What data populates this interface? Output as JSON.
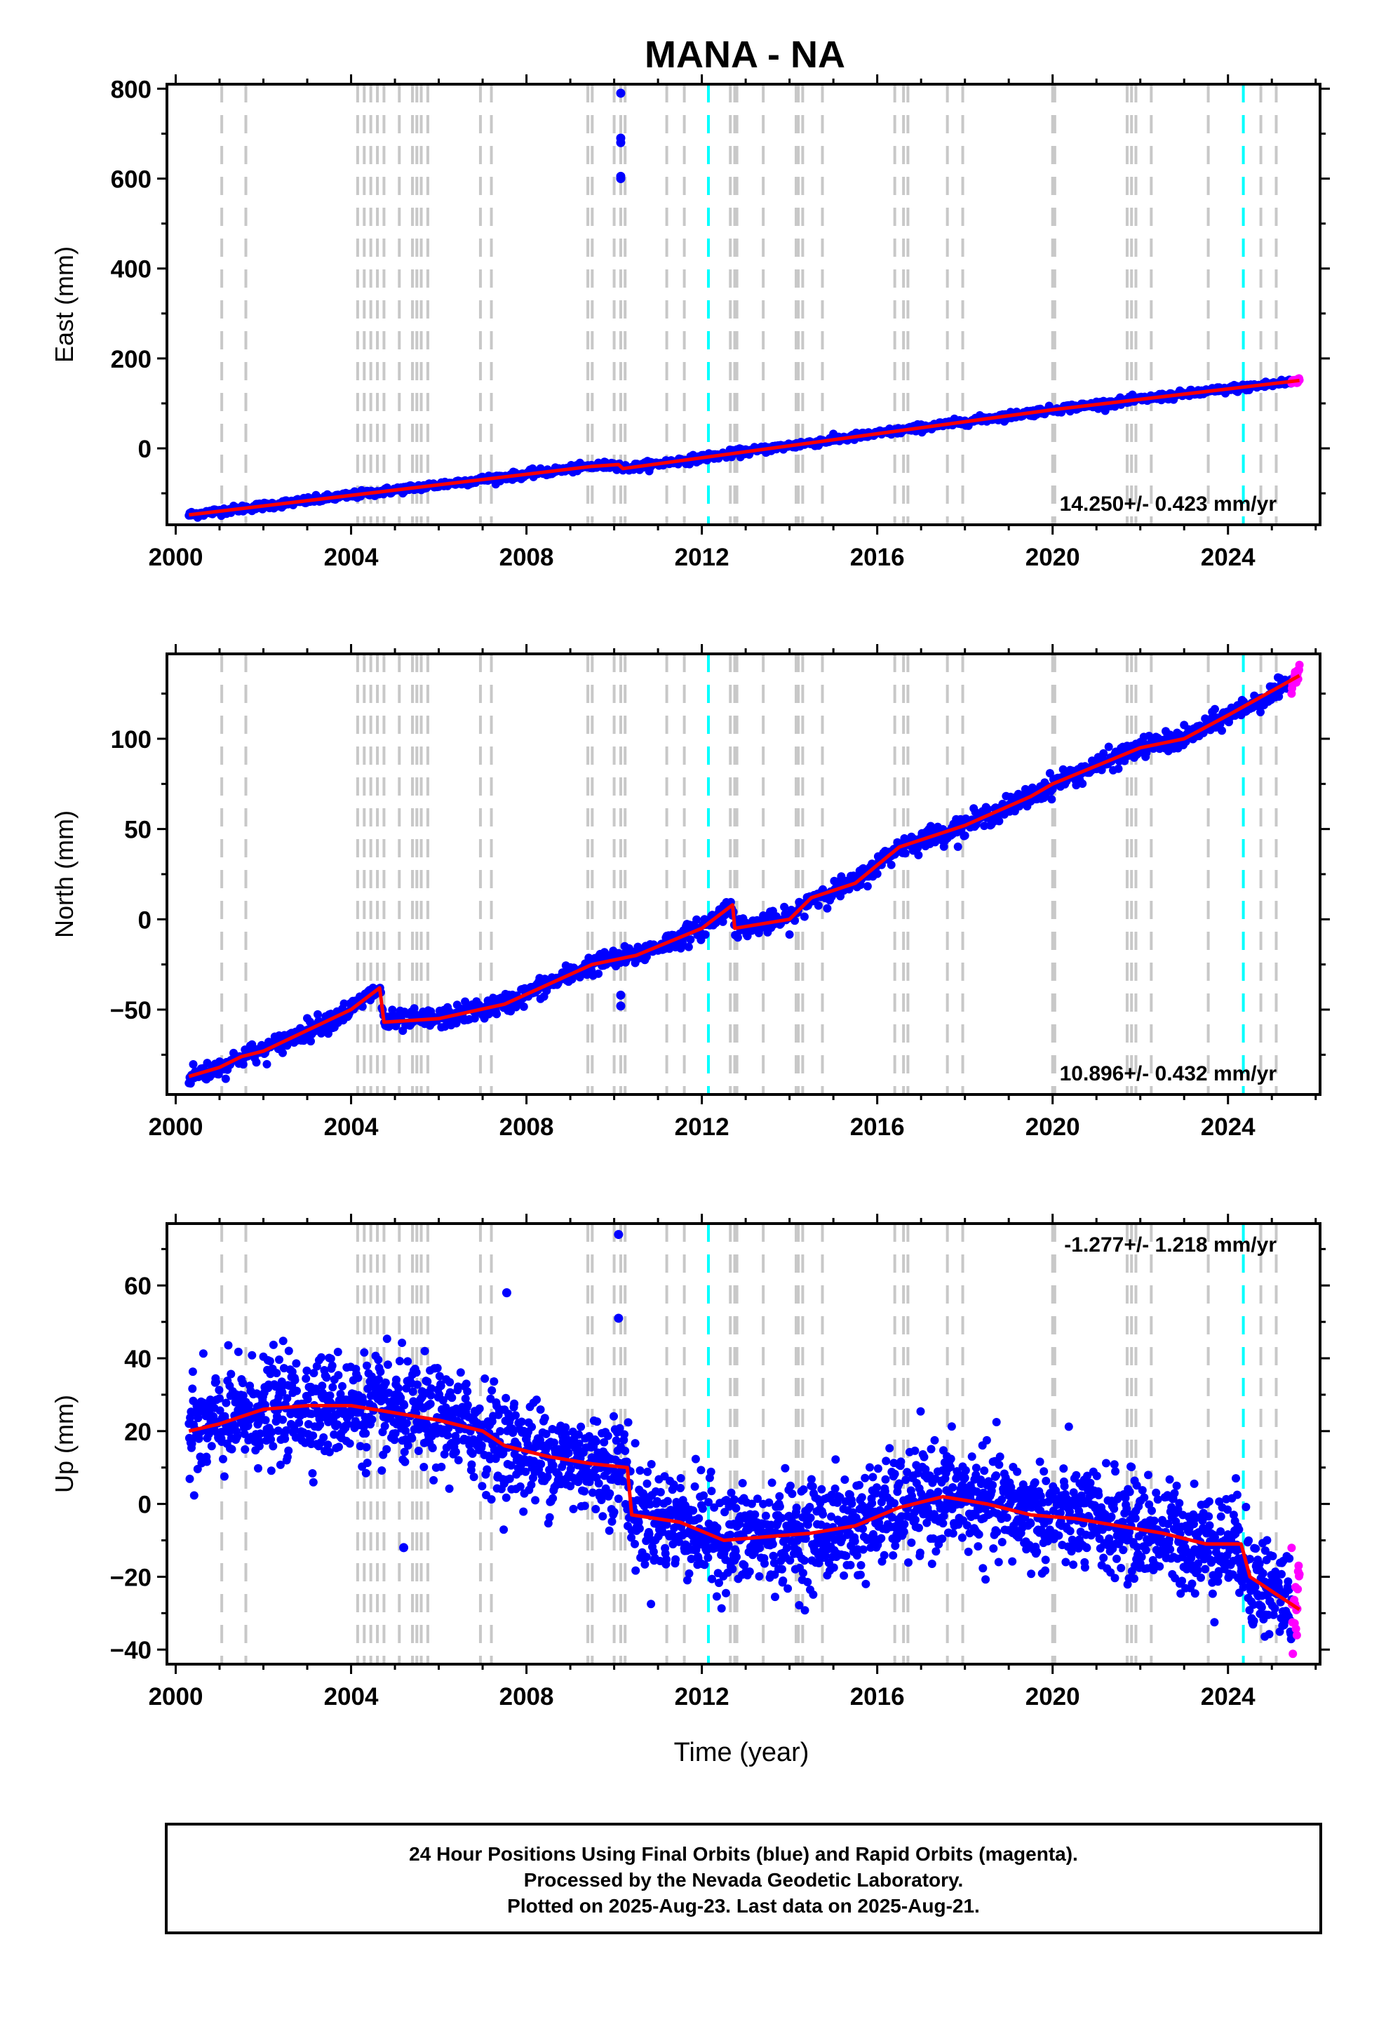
{
  "figure": {
    "title": "MANA - NA",
    "xlabel": "Time (year)",
    "footer": [
      "24 Hour Positions Using Final Orbits (blue) and Rapid Orbits (magenta).",
      "Processed by the Nevada Geodetic Laboratory.",
      "Plotted on 2025-Aug-23. Last data on 2025-Aug-21."
    ]
  },
  "colors": {
    "final_orbits": "#0000ff",
    "rapid_orbits": "#ff00ff",
    "model": "#ff0000",
    "equipment_change": "#c8c8c8",
    "earthquake": "#00ffff",
    "frame": "#000000"
  },
  "chart_data": [
    {
      "type": "scatter",
      "ylabel": "East (mm)",
      "xlim": [
        1999.8,
        2026.1
      ],
      "ylim": [
        -170,
        810
      ],
      "xticks": [
        2000,
        2004,
        2008,
        2012,
        2016,
        2020,
        2024
      ],
      "yticks": [
        0,
        200,
        400,
        600,
        800
      ],
      "rate_text": "14.250+/- 0.423 mm/yr",
      "rate_position": "bottom-right",
      "series": [
        {
          "role": "final",
          "start": 2000.3,
          "end": 2025.45,
          "step": 0.02,
          "anchors": [
            [
              2000.3,
              -148
            ],
            [
              2009.5,
              -40
            ],
            [
              2010.1,
              -36
            ],
            [
              2010.2,
              -45
            ],
            [
              2020.0,
              86
            ],
            [
              2025.45,
              148
            ]
          ],
          "noise": 4
        },
        {
          "role": "rapid",
          "start": 2025.45,
          "end": 2025.63,
          "step": 0.01,
          "anchors": [
            [
              2025.45,
              148
            ],
            [
              2025.63,
              152
            ]
          ],
          "noise": 3
        }
      ],
      "outliers": [
        [
          2010.15,
          790
        ],
        [
          2010.15,
          690
        ],
        [
          2010.15,
          680
        ],
        [
          2010.15,
          605
        ],
        [
          2010.15,
          600
        ]
      ],
      "model": [
        [
          2000.3,
          -148
        ],
        [
          2009.5,
          -40
        ],
        [
          2010.1,
          -36
        ],
        [
          2010.2,
          -45
        ],
        [
          2020.0,
          86
        ],
        [
          2025.63,
          151
        ]
      ]
    },
    {
      "type": "scatter",
      "ylabel": "North (mm)",
      "xlim": [
        1999.8,
        2026.1
      ],
      "ylim": [
        -97,
        147
      ],
      "xticks": [
        2000,
        2004,
        2008,
        2012,
        2016,
        2020,
        2024
      ],
      "yticks": [
        -50,
        0,
        50,
        100
      ],
      "rate_text": "10.896+/- 0.432 mm/yr",
      "rate_position": "bottom-right",
      "series": [
        {
          "role": "final",
          "start": 2000.3,
          "end": 2025.45,
          "step": 0.02,
          "anchors": [
            [
              2000.3,
              -87
            ],
            [
              2001.0,
              -82
            ],
            [
              2001.5,
              -76
            ],
            [
              2002.0,
              -73
            ],
            [
              2004.0,
              -50
            ],
            [
              2004.65,
              -38
            ],
            [
              2004.75,
              -57
            ],
            [
              2006.0,
              -55
            ],
            [
              2007.5,
              -47
            ],
            [
              2009.5,
              -25
            ],
            [
              2010.5,
              -20
            ],
            [
              2012.0,
              -5
            ],
            [
              2012.7,
              8
            ],
            [
              2012.75,
              -5
            ],
            [
              2014.0,
              0
            ],
            [
              2014.5,
              12
            ],
            [
              2015.5,
              20
            ],
            [
              2016.5,
              40
            ],
            [
              2018.0,
              52
            ],
            [
              2019.5,
              68
            ],
            [
              2020.0,
              75
            ],
            [
              2021.0,
              85
            ],
            [
              2022.0,
              95
            ],
            [
              2023.0,
              100
            ],
            [
              2024.0,
              113
            ],
            [
              2025.45,
              130
            ]
          ],
          "noise": 2.8
        },
        {
          "role": "rapid",
          "start": 2025.45,
          "end": 2025.63,
          "step": 0.01,
          "anchors": [
            [
              2025.45,
              130
            ],
            [
              2025.63,
              140
            ]
          ],
          "noise": 2
        }
      ],
      "outliers": [
        [
          2010.15,
          -42
        ],
        [
          2010.15,
          -48
        ]
      ],
      "model": [
        [
          2000.3,
          -87
        ],
        [
          2001.0,
          -82
        ],
        [
          2001.5,
          -76
        ],
        [
          2002.0,
          -73
        ],
        [
          2004.0,
          -50
        ],
        [
          2004.65,
          -38
        ],
        [
          2004.75,
          -57
        ],
        [
          2006.0,
          -55
        ],
        [
          2007.5,
          -47
        ],
        [
          2009.5,
          -25
        ],
        [
          2010.5,
          -20
        ],
        [
          2012.0,
          -5
        ],
        [
          2012.7,
          8
        ],
        [
          2012.75,
          -5
        ],
        [
          2014.0,
          0
        ],
        [
          2014.5,
          12
        ],
        [
          2015.5,
          20
        ],
        [
          2016.5,
          40
        ],
        [
          2018.0,
          52
        ],
        [
          2019.5,
          68
        ],
        [
          2020.0,
          75
        ],
        [
          2021.0,
          85
        ],
        [
          2022.0,
          95
        ],
        [
          2023.0,
          100
        ],
        [
          2024.0,
          113
        ],
        [
          2025.63,
          135
        ]
      ]
    },
    {
      "type": "scatter",
      "ylabel": "Up (mm)",
      "xlim": [
        1999.8,
        2026.1
      ],
      "ylim": [
        -44,
        77
      ],
      "xticks": [
        2000,
        2004,
        2008,
        2012,
        2016,
        2020,
        2024
      ],
      "yticks": [
        -40,
        -20,
        0,
        20,
        40,
        60
      ],
      "rate_text": "-1.277+/- 1.218 mm/yr",
      "rate_position": "top-right",
      "series": [
        {
          "role": "final",
          "start": 2000.3,
          "end": 2025.45,
          "step": 0.01,
          "anchors": [
            [
              2000.3,
              20
            ],
            [
              2001.0,
              22
            ],
            [
              2002.0,
              26
            ],
            [
              2003.0,
              27
            ],
            [
              2004.0,
              27
            ],
            [
              2005.0,
              25
            ],
            [
              2006.0,
              23
            ],
            [
              2007.0,
              20
            ],
            [
              2007.5,
              16
            ],
            [
              2008.5,
              13
            ],
            [
              2009.5,
              11
            ],
            [
              2010.3,
              10
            ],
            [
              2010.4,
              -3
            ],
            [
              2011.5,
              -5
            ],
            [
              2012.5,
              -10
            ],
            [
              2013.5,
              -9
            ],
            [
              2014.5,
              -8
            ],
            [
              2015.5,
              -6
            ],
            [
              2016.5,
              -1
            ],
            [
              2017.5,
              2
            ],
            [
              2018.5,
              0
            ],
            [
              2019.5,
              -3
            ],
            [
              2020.5,
              -4
            ],
            [
              2021.5,
              -6
            ],
            [
              2022.5,
              -8
            ],
            [
              2023.5,
              -11
            ],
            [
              2024.3,
              -11
            ],
            [
              2024.5,
              -20
            ],
            [
              2025.45,
              -27
            ]
          ],
          "noise": 7
        },
        {
          "role": "rapid",
          "start": 2025.45,
          "end": 2025.63,
          "step": 0.01,
          "anchors": [
            [
              2025.45,
              -27
            ],
            [
              2025.63,
              -29
            ]
          ],
          "noise": 7
        }
      ],
      "outliers": [
        [
          2010.1,
          74
        ],
        [
          2010.1,
          51
        ],
        [
          2007.55,
          58
        ],
        [
          2005.2,
          -12
        ]
      ],
      "model": [
        [
          2000.3,
          20
        ],
        [
          2001.0,
          22
        ],
        [
          2002.0,
          26
        ],
        [
          2003.0,
          27
        ],
        [
          2004.0,
          27
        ],
        [
          2005.0,
          25
        ],
        [
          2006.0,
          23
        ],
        [
          2007.0,
          20
        ],
        [
          2007.5,
          16
        ],
        [
          2008.5,
          13
        ],
        [
          2009.5,
          11
        ],
        [
          2010.3,
          10
        ],
        [
          2010.4,
          -3
        ],
        [
          2011.5,
          -5
        ],
        [
          2012.5,
          -10
        ],
        [
          2013.5,
          -9
        ],
        [
          2014.5,
          -8
        ],
        [
          2015.5,
          -6
        ],
        [
          2016.5,
          -1
        ],
        [
          2017.5,
          2
        ],
        [
          2018.5,
          0
        ],
        [
          2019.5,
          -3
        ],
        [
          2020.5,
          -4
        ],
        [
          2021.5,
          -6
        ],
        [
          2022.5,
          -8
        ],
        [
          2023.5,
          -11
        ],
        [
          2024.3,
          -11
        ],
        [
          2024.5,
          -20
        ],
        [
          2025.63,
          -29
        ]
      ]
    }
  ],
  "event_lines": {
    "equipment": [
      2001.05,
      2001.6,
      2004.15,
      2004.3,
      2004.45,
      2004.6,
      2004.75,
      2005.1,
      2005.4,
      2005.5,
      2005.6,
      2005.75,
      2006.95,
      2007.2,
      2009.4,
      2009.5,
      2010.0,
      2010.15,
      2010.25,
      2011.2,
      2011.6,
      2012.65,
      2012.75,
      2012.8,
      2013.4,
      2014.15,
      2014.2,
      2014.3,
      2014.75,
      2016.4,
      2016.6,
      2016.7,
      2017.6,
      2017.95,
      2020.0,
      2020.05,
      2021.7,
      2021.8,
      2021.9,
      2022.25,
      2023.55,
      2024.75,
      2025.1
    ],
    "earthquake": [
      2012.15,
      2024.35
    ]
  }
}
